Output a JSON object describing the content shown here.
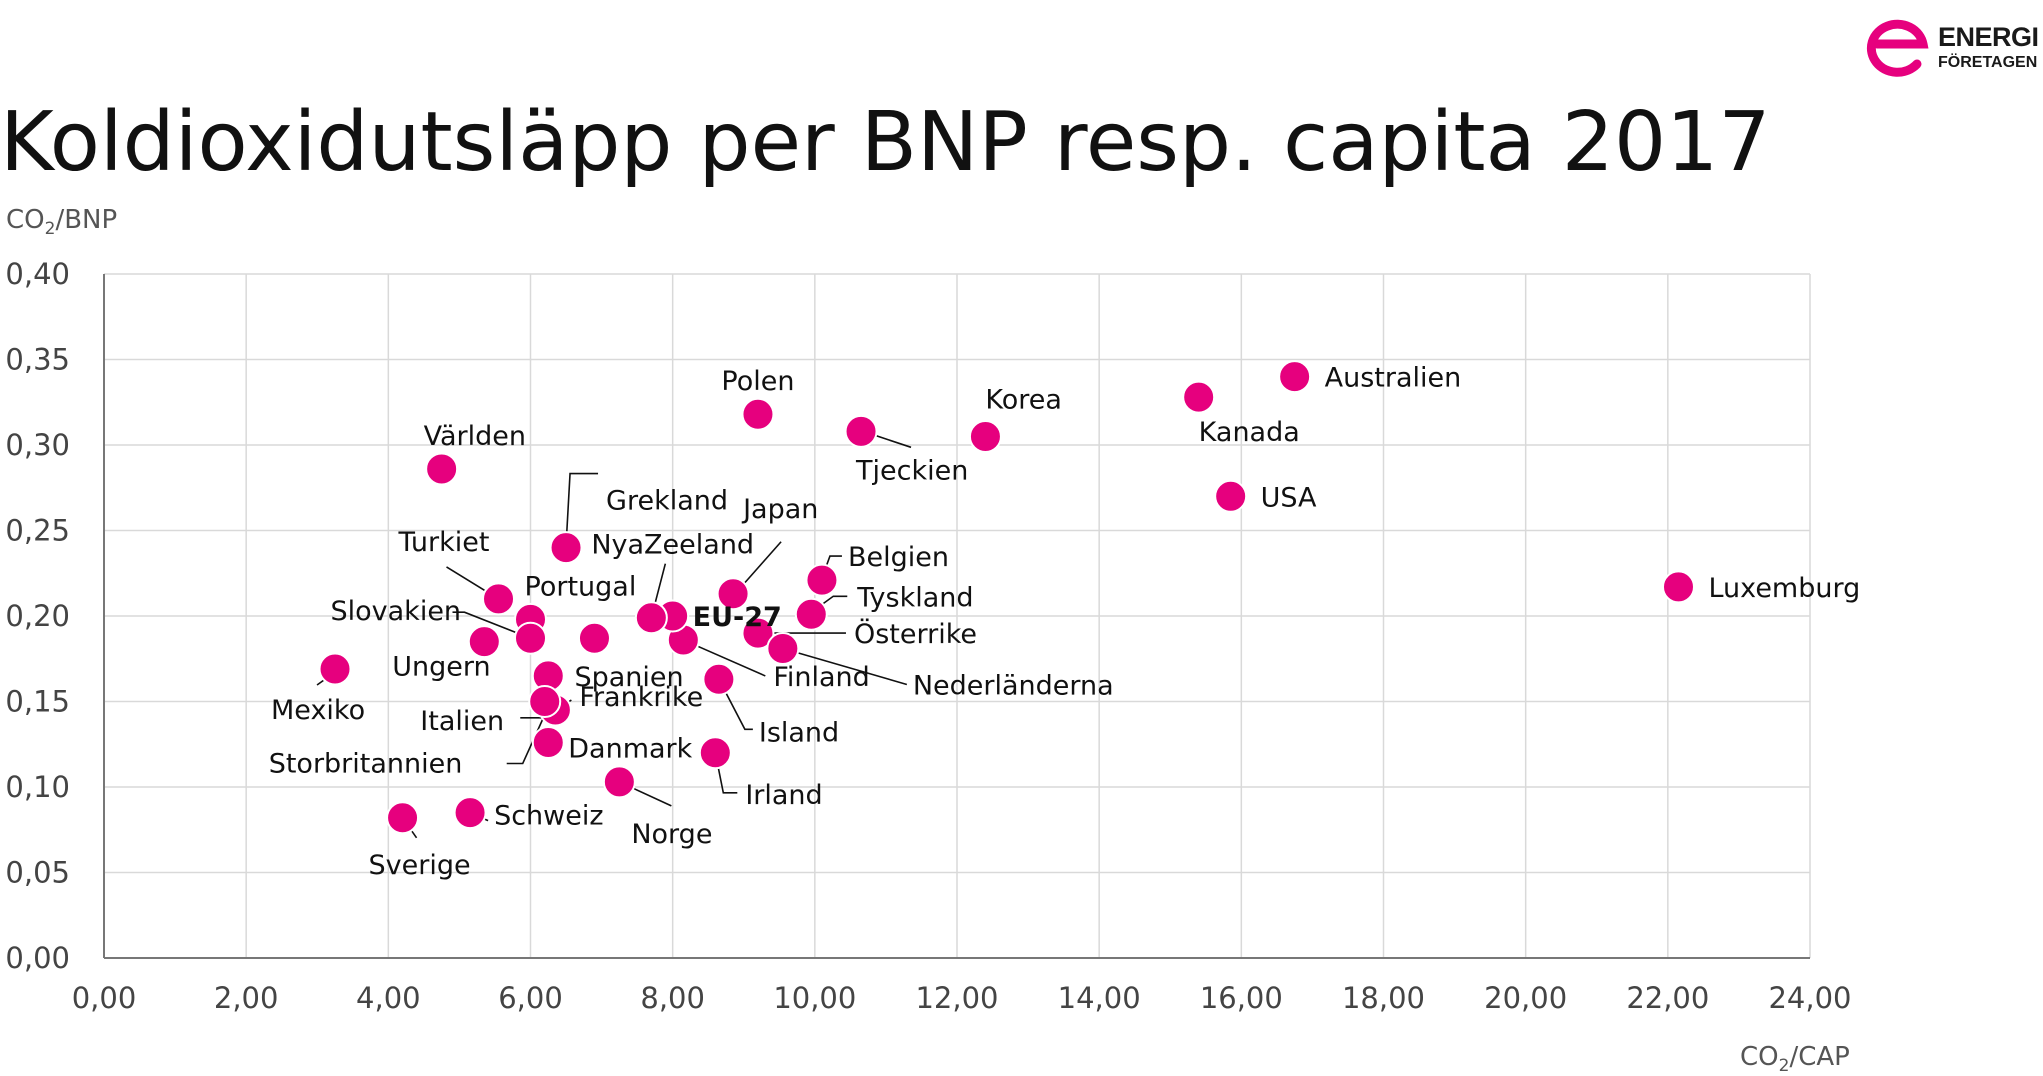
{
  "brand": {
    "name_line1": "ENERGI",
    "name_line2": "FÖRETAGEN",
    "accent": "#e6007e"
  },
  "chart_data": {
    "type": "scatter",
    "title": "Koldioxidutsläpp per BNP resp. capita 2017",
    "ylabel": {
      "main": "CO",
      "sub": "2",
      "rest": "/BNP"
    },
    "xlabel": {
      "main": "CO",
      "sub": "2",
      "rest": "/CAP"
    },
    "xlim": [
      0,
      24
    ],
    "ylim": [
      0,
      0.4
    ],
    "xticks": [
      0,
      2,
      4,
      6,
      8,
      10,
      12,
      14,
      16,
      18,
      20,
      22,
      24
    ],
    "yticks": [
      0,
      0.05,
      0.1,
      0.15,
      0.2,
      0.25,
      0.3,
      0.35,
      0.4
    ],
    "xtick_labels": [
      "0,00",
      "2,00",
      "4,00",
      "6,00",
      "8,00",
      "10,00",
      "12,00",
      "14,00",
      "16,00",
      "18,00",
      "20,00",
      "22,00",
      "24,00"
    ],
    "ytick_labels": [
      "0,00",
      "0,05",
      "0,10",
      "0,15",
      "0,20",
      "0,25",
      "0,30",
      "0,35",
      "0,40"
    ],
    "grid": true,
    "marker_color": "#e6007e",
    "points": [
      {
        "name": "Australien",
        "x": 16.75,
        "y": 0.34
      },
      {
        "name": "Kanada",
        "x": 15.4,
        "y": 0.328
      },
      {
        "name": "USA",
        "x": 15.85,
        "y": 0.27
      },
      {
        "name": "Luxemburg",
        "x": 22.15,
        "y": 0.217
      },
      {
        "name": "Korea",
        "x": 12.4,
        "y": 0.305
      },
      {
        "name": "Tjeckien",
        "x": 10.65,
        "y": 0.308
      },
      {
        "name": "Polen",
        "x": 9.2,
        "y": 0.318
      },
      {
        "name": "Världen",
        "x": 4.75,
        "y": 0.286
      },
      {
        "name": "Grekland",
        "x": 6.5,
        "y": 0.24
      },
      {
        "name": "Japan",
        "x": 8.85,
        "y": 0.213
      },
      {
        "name": "Belgien",
        "x": 10.1,
        "y": 0.221
      },
      {
        "name": "Tyskland",
        "x": 9.95,
        "y": 0.201
      },
      {
        "name": "Österrike",
        "x": 9.2,
        "y": 0.19
      },
      {
        "name": "Nederländerna",
        "x": 9.55,
        "y": 0.181
      },
      {
        "name": "Finland",
        "x": 8.15,
        "y": 0.186
      },
      {
        "name": "EU-27",
        "x": 8.0,
        "y": 0.2
      },
      {
        "name": "NyaZeeland",
        "x": 7.7,
        "y": 0.199
      },
      {
        "name": "Spanien",
        "x": 6.9,
        "y": 0.187
      },
      {
        "name": "Turkiet",
        "x": 5.55,
        "y": 0.21
      },
      {
        "name": "Portugal",
        "x": 6.0,
        "y": 0.198
      },
      {
        "name": "Slovakien",
        "x": 6.0,
        "y": 0.187
      },
      {
        "name": "Ungern",
        "x": 5.35,
        "y": 0.185
      },
      {
        "name": "Mexiko",
        "x": 3.25,
        "y": 0.169
      },
      {
        "name": "Italien",
        "x": 6.25,
        "y": 0.165
      },
      {
        "name": "Frankrike",
        "x": 6.35,
        "y": 0.145
      },
      {
        "name": "Storbritannien",
        "x": 6.2,
        "y": 0.15
      },
      {
        "name": "Danmark",
        "x": 6.25,
        "y": 0.126
      },
      {
        "name": "Island",
        "x": 8.65,
        "y": 0.163
      },
      {
        "name": "Irland",
        "x": 8.6,
        "y": 0.12
      },
      {
        "name": "Norge",
        "x": 7.25,
        "y": 0.103
      },
      {
        "name": "Schweiz",
        "x": 5.15,
        "y": 0.085
      },
      {
        "name": "Sverige",
        "x": 4.2,
        "y": 0.082
      }
    ]
  }
}
